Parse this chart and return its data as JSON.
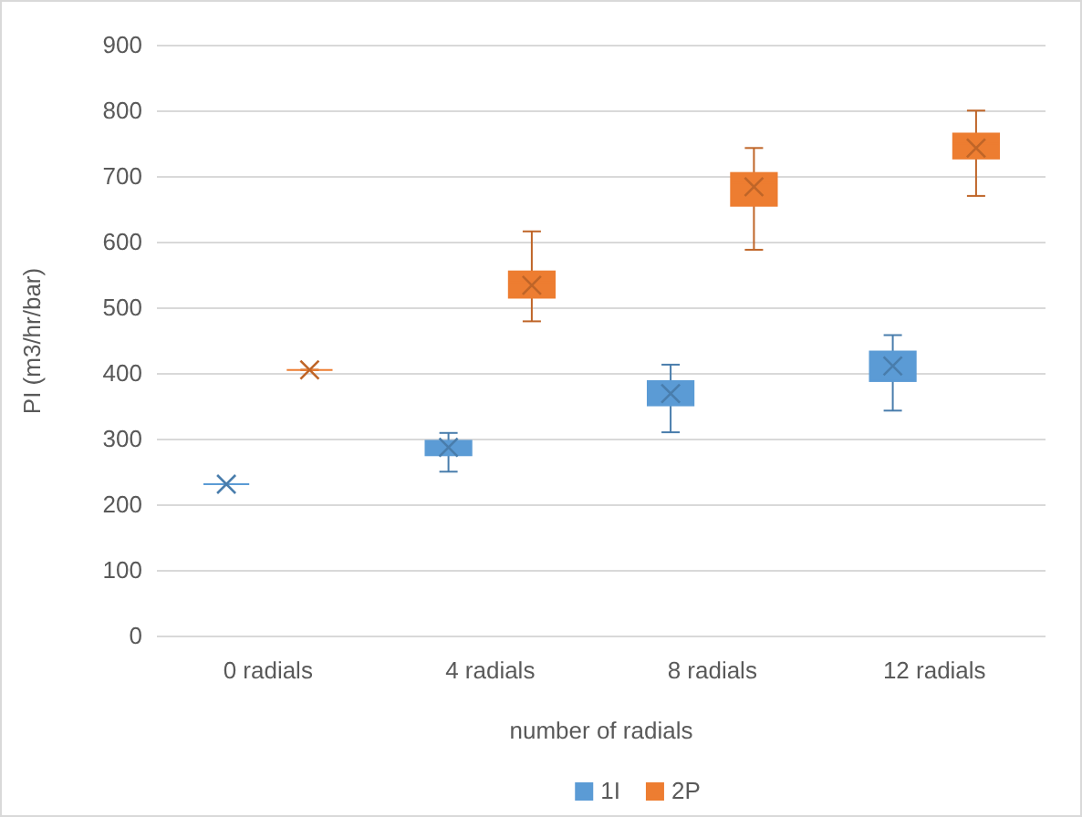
{
  "chart_data": {
    "type": "box",
    "ylabel": "PI (m3/hr/bar)",
    "xlabel": "number of radials",
    "categories": [
      "0 radials",
      "4 radials",
      "8 radials",
      "12 radials"
    ],
    "ylim": [
      0,
      900
    ],
    "yticks": [
      0,
      100,
      200,
      300,
      400,
      500,
      600,
      700,
      800,
      900
    ],
    "grid": "y",
    "legend": "bottom",
    "series": [
      {
        "name": "1I",
        "color": "#5b9bd5",
        "boxes": [
          {
            "low": 232,
            "q1": 232,
            "median": 232,
            "q3": 232,
            "high": 232,
            "mean": 232
          },
          {
            "low": 251,
            "q1": 276,
            "median": 288,
            "q3": 298,
            "high": 310,
            "mean": 288
          },
          {
            "low": 311,
            "q1": 352,
            "median": 375,
            "q3": 389,
            "high": 414,
            "mean": 370
          },
          {
            "low": 344,
            "q1": 389,
            "median": 418,
            "q3": 434,
            "high": 459,
            "mean": 412
          }
        ]
      },
      {
        "name": "2P",
        "color": "#ed7d31",
        "boxes": [
          {
            "low": 406,
            "q1": 406,
            "median": 406,
            "q3": 406,
            "high": 406,
            "mean": 406
          },
          {
            "low": 480,
            "q1": 516,
            "median": 540,
            "q3": 556,
            "high": 617,
            "mean": 535
          },
          {
            "low": 589,
            "q1": 656,
            "median": 691,
            "q3": 706,
            "high": 744,
            "mean": 685
          },
          {
            "low": 671,
            "q1": 728,
            "median": 751,
            "q3": 766,
            "high": 801,
            "mean": 744
          }
        ]
      }
    ]
  }
}
